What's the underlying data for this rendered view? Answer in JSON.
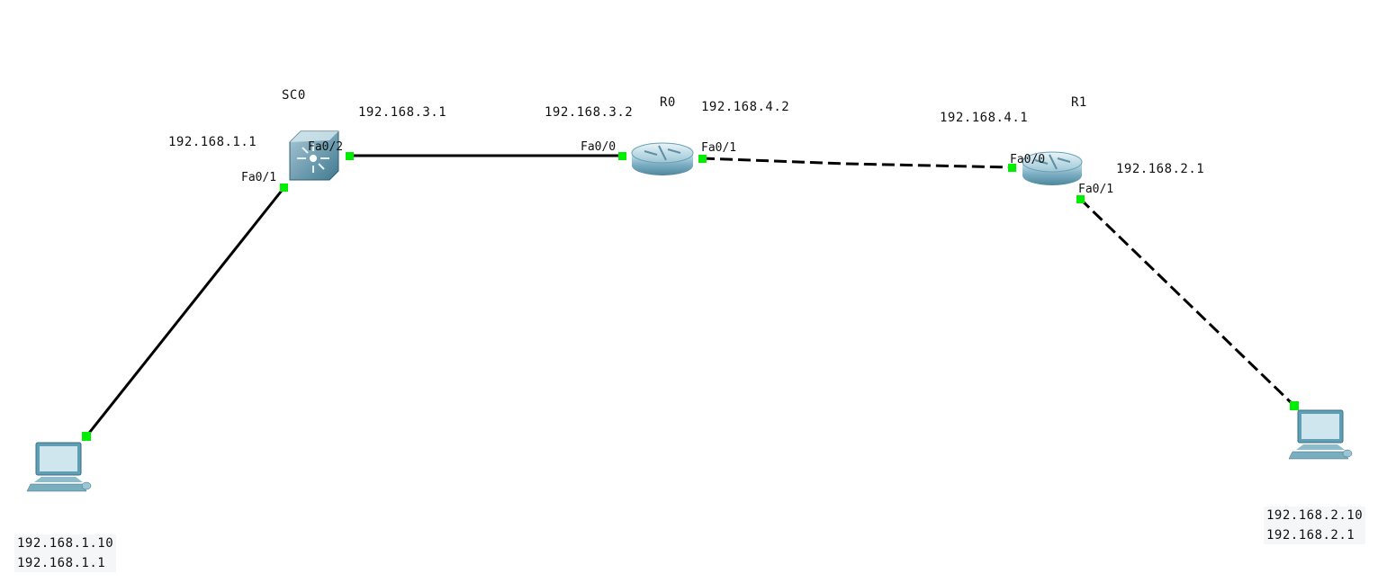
{
  "devices": {
    "switch": {
      "name": "SC0",
      "ip": "192.168.1.1",
      "ip_uplink": "192.168.3.1",
      "port_pc": "Fa0/1",
      "port_uplink": "Fa0/2"
    },
    "r0": {
      "name": "R0",
      "ip_left": "192.168.3.2",
      "ip_right": "192.168.4.2",
      "port_left": "Fa0/0",
      "port_right": "Fa0/1"
    },
    "r1": {
      "name": "R1",
      "ip_left": "192.168.4.1",
      "ip_right": "192.168.2.1",
      "port_left": "Fa0/0",
      "port_right": "Fa0/1"
    },
    "pc_left": {
      "ip": "192.168.1.10",
      "gateway": "192.168.1.1"
    },
    "pc_right": {
      "ip": "192.168.2.10",
      "gateway": "192.168.2.1"
    }
  },
  "colors": {
    "link_up": "#00ee00",
    "cable": "#000000",
    "device": "#5f9fb5"
  },
  "icons": {
    "switch": "multilayer-switch-icon",
    "router": "router-icon",
    "pc": "pc-icon"
  }
}
